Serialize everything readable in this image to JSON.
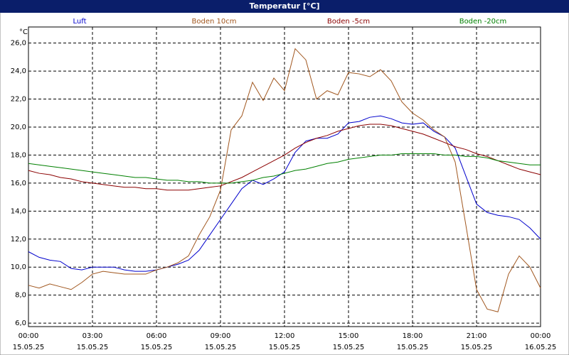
{
  "chart_data": {
    "type": "line",
    "title": "Temperatur [°C]",
    "y_unit": "°C",
    "x": [
      0,
      0.5,
      1,
      1.5,
      2,
      2.5,
      3,
      3.5,
      4,
      4.5,
      5,
      5.5,
      6,
      6.5,
      7,
      7.5,
      8,
      8.5,
      9,
      9.5,
      10,
      10.5,
      11,
      11.5,
      12,
      12.5,
      13,
      13.5,
      14,
      14.5,
      15,
      15.5,
      16,
      16.5,
      17,
      17.5,
      18,
      18.5,
      19,
      19.5,
      20,
      20.5,
      21,
      21.5,
      22,
      22.5,
      23,
      23.5,
      24
    ],
    "xlim": [
      0,
      24
    ],
    "xticks": [
      {
        "value": 0,
        "label": "00:00"
      },
      {
        "value": 3,
        "label": "03:00"
      },
      {
        "value": 6,
        "label": "06:00"
      },
      {
        "value": 9,
        "label": "09:00"
      },
      {
        "value": 12,
        "label": "12:00"
      },
      {
        "value": 15,
        "label": "15:00"
      },
      {
        "value": 18,
        "label": "18:00"
      },
      {
        "value": 21,
        "label": "21:00"
      },
      {
        "value": 24,
        "label": "00:00"
      }
    ],
    "xtick_dates": [
      "15.05.25",
      "15.05.25",
      "15.05.25",
      "15.05.25",
      "15.05.25",
      "15.05.25",
      "15.05.25",
      "15.05.25",
      "16.05.25"
    ],
    "ylim": [
      5.75,
      27.15
    ],
    "yticks": [
      {
        "value": 6,
        "label": "6,0"
      },
      {
        "value": 8,
        "label": "8,0"
      },
      {
        "value": 10,
        "label": "10,0"
      },
      {
        "value": 12,
        "label": "12,0"
      },
      {
        "value": 14,
        "label": "14,0"
      },
      {
        "value": 16,
        "label": "16,0"
      },
      {
        "value": 18,
        "label": "18,0"
      },
      {
        "value": 20,
        "label": "20,0"
      },
      {
        "value": 22,
        "label": "22,0"
      },
      {
        "value": 24,
        "label": "24,0"
      },
      {
        "value": 26,
        "label": "26,0"
      }
    ],
    "grid": true,
    "series": [
      {
        "name": "Luft",
        "color": "#0000cc",
        "values": [
          11.1,
          10.7,
          10.5,
          10.4,
          9.9,
          9.8,
          10.0,
          10.0,
          10.0,
          9.8,
          9.7,
          9.7,
          9.8,
          10.0,
          10.2,
          10.5,
          11.2,
          12.3,
          13.4,
          14.5,
          15.6,
          16.2,
          15.9,
          16.3,
          16.8,
          18.2,
          19.0,
          19.2,
          19.2,
          19.5,
          20.3,
          20.4,
          20.7,
          20.8,
          20.6,
          20.3,
          20.2,
          20.3,
          19.7,
          19.3,
          18.5,
          16.5,
          14.5,
          13.9,
          13.7,
          13.6,
          13.4,
          12.8,
          12.0
        ]
      },
      {
        "name": "Boden 10cm",
        "color": "#a0561e",
        "values": [
          8.7,
          8.5,
          8.8,
          8.6,
          8.4,
          8.9,
          9.5,
          9.7,
          9.6,
          9.5,
          9.5,
          9.5,
          9.8,
          10.0,
          10.3,
          10.8,
          12.3,
          13.6,
          15.5,
          19.8,
          20.8,
          23.2,
          21.9,
          23.5,
          22.6,
          25.6,
          24.8,
          22.0,
          22.6,
          22.3,
          23.9,
          23.8,
          23.6,
          24.1,
          23.3,
          21.8,
          21.0,
          20.5,
          19.8,
          19.3,
          17.5,
          13.0,
          8.4,
          7.0,
          6.8,
          9.5,
          10.8,
          10.0,
          8.5
        ]
      },
      {
        "name": "Boden -5cm",
        "color": "#8b0000",
        "values": [
          16.9,
          16.7,
          16.6,
          16.4,
          16.3,
          16.1,
          16.0,
          15.9,
          15.8,
          15.7,
          15.7,
          15.6,
          15.6,
          15.5,
          15.5,
          15.5,
          15.6,
          15.7,
          15.8,
          16.1,
          16.4,
          16.8,
          17.2,
          17.6,
          18.0,
          18.5,
          18.9,
          19.2,
          19.4,
          19.7,
          19.9,
          20.1,
          20.2,
          20.2,
          20.1,
          19.9,
          19.7,
          19.5,
          19.2,
          18.9,
          18.6,
          18.4,
          18.1,
          17.9,
          17.6,
          17.3,
          17.0,
          16.8,
          16.6
        ]
      },
      {
        "name": "Boden -20cm",
        "color": "#008000",
        "values": [
          17.4,
          17.3,
          17.2,
          17.1,
          17.0,
          16.9,
          16.8,
          16.7,
          16.6,
          16.5,
          16.4,
          16.4,
          16.3,
          16.2,
          16.2,
          16.1,
          16.1,
          16.0,
          16.0,
          16.0,
          16.1,
          16.2,
          16.4,
          16.5,
          16.7,
          16.9,
          17.0,
          17.2,
          17.4,
          17.5,
          17.7,
          17.8,
          17.9,
          18.0,
          18.0,
          18.1,
          18.1,
          18.1,
          18.1,
          18.0,
          18.0,
          17.9,
          17.9,
          17.8,
          17.6,
          17.5,
          17.4,
          17.3,
          17.3
        ]
      }
    ]
  }
}
